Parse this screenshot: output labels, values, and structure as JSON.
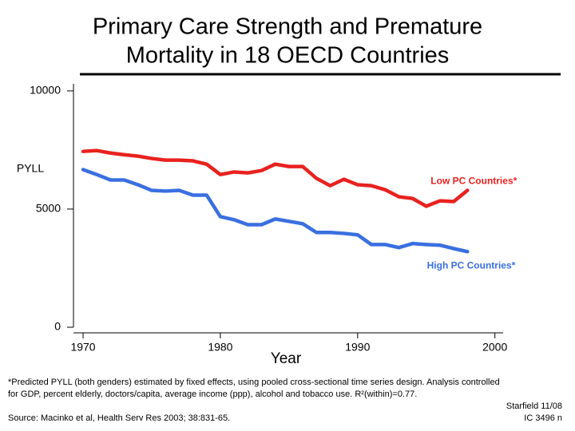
{
  "chart_data": {
    "type": "line",
    "title": [
      "Primary Care Strength and Premature",
      "Mortality in 18 OECD Countries"
    ],
    "y_label": "PYLL",
    "x_label": "Year",
    "x": [
      1970,
      1971,
      1972,
      1973,
      1974,
      1975,
      1976,
      1977,
      1978,
      1979,
      1980,
      1981,
      1982,
      1983,
      1984,
      1985,
      1986,
      1987,
      1988,
      1989,
      1990,
      1991,
      1992,
      1993,
      1994,
      1995,
      1996,
      1997,
      1998
    ],
    "series": [
      {
        "name": "Low PC Countries*",
        "color": "#e8221f",
        "values": [
          7440,
          7475,
          7370,
          7300,
          7240,
          7140,
          7070,
          7070,
          7040,
          6900,
          6460,
          6570,
          6530,
          6630,
          6900,
          6800,
          6800,
          6300,
          5990,
          6260,
          6030,
          5990,
          5820,
          5520,
          5450,
          5120,
          5350,
          5320,
          5790
        ]
      },
      {
        "name": "High PC Countries*",
        "color": "#3a6fe0",
        "values": [
          6670,
          6460,
          6230,
          6230,
          6030,
          5790,
          5760,
          5790,
          5590,
          5590,
          4680,
          4550,
          4340,
          4340,
          4580,
          4480,
          4380,
          4010,
          4010,
          3970,
          3910,
          3500,
          3500,
          3370,
          3540,
          3500,
          3470,
          3330,
          3200
        ]
      }
    ],
    "xlim": [
      1969.3,
      2000.6
    ],
    "ylim": [
      0,
      10300
    ],
    "xticks": [
      1970,
      1980,
      1990,
      2000
    ],
    "yticks": [
      0,
      5000,
      10000
    ],
    "notes": [
      "*Predicted PYLL (both genders) estimated by fixed effects, using pooled cross-sectional time series design.  Analysis controlled",
      "for GDP, percent elderly, doctors/capita, average income (ppp), alcohol and tobacco use.   R²(within)=0.77."
    ],
    "source": "Source: Macinko et al, Health Serv Res 2003; 38:831-65.",
    "credit": [
      "Starfield 11/08",
      "IC 3496 n"
    ]
  }
}
